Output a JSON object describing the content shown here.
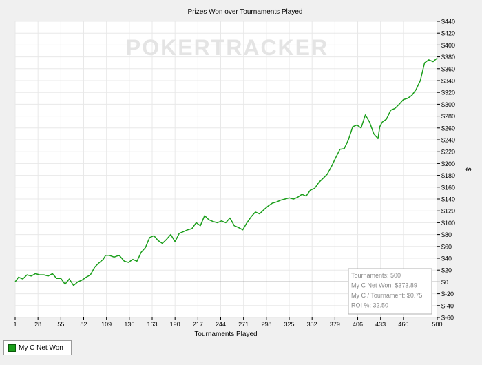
{
  "chart_data": {
    "type": "line",
    "title": "Prizes Won over Tournaments Played",
    "xlabel": "Tournaments Played",
    "ylabel": "$",
    "watermark": "POKERTRACKER",
    "xlim": [
      1,
      500
    ],
    "ylim": [
      -60,
      440
    ],
    "x_ticks": [
      "1",
      "28",
      "55",
      "82",
      "109",
      "136",
      "163",
      "190",
      "217",
      "244",
      "271",
      "298",
      "325",
      "352",
      "379",
      "406",
      "433",
      "460",
      "500"
    ],
    "y_ticks": [
      "$440",
      "$420",
      "$400",
      "$380",
      "$360",
      "$340",
      "$320",
      "$300",
      "$280",
      "$260",
      "$240",
      "$220",
      "$200",
      "$180",
      "$160",
      "$140",
      "$120",
      "$100",
      "$80",
      "$60",
      "$40",
      "$20",
      "$0",
      "$-20",
      "$-40",
      "$-60"
    ],
    "grid": true,
    "legend_position": "bottom-left",
    "series": [
      {
        "name": "My C Net Won",
        "color": "#1a9e1a",
        "x": [
          1,
          5,
          10,
          15,
          20,
          25,
          30,
          35,
          40,
          45,
          50,
          55,
          60,
          65,
          70,
          75,
          80,
          85,
          90,
          95,
          100,
          105,
          108,
          112,
          118,
          124,
          130,
          135,
          140,
          145,
          150,
          155,
          160,
          165,
          170,
          175,
          180,
          185,
          190,
          195,
          200,
          205,
          210,
          215,
          220,
          225,
          230,
          235,
          240,
          245,
          250,
          255,
          260,
          265,
          270,
          275,
          280,
          285,
          290,
          295,
          300,
          305,
          310,
          315,
          320,
          325,
          330,
          335,
          340,
          345,
          350,
          355,
          360,
          365,
          370,
          375,
          380,
          385,
          390,
          395,
          400,
          405,
          410,
          415,
          420,
          425,
          430,
          432,
          435,
          440,
          445,
          450,
          455,
          460,
          465,
          470,
          475,
          480,
          485,
          490,
          495,
          500
        ],
        "y": [
          0,
          8,
          5,
          12,
          10,
          14,
          12,
          12,
          10,
          14,
          6,
          6,
          -4,
          5,
          -6,
          0,
          3,
          8,
          12,
          25,
          32,
          38,
          45,
          45,
          42,
          45,
          35,
          33,
          38,
          35,
          50,
          58,
          75,
          78,
          70,
          65,
          72,
          80,
          68,
          82,
          85,
          88,
          90,
          100,
          95,
          112,
          105,
          102,
          100,
          103,
          100,
          108,
          95,
          92,
          88,
          100,
          110,
          118,
          115,
          122,
          128,
          133,
          135,
          138,
          140,
          142,
          140,
          143,
          148,
          145,
          155,
          158,
          168,
          175,
          182,
          195,
          210,
          224,
          225,
          240,
          262,
          265,
          260,
          282,
          270,
          250,
          242,
          262,
          270,
          275,
          290,
          293,
          300,
          308,
          310,
          315,
          325,
          340,
          370,
          375,
          372,
          378
        ]
      }
    ],
    "stats": [
      "Tournaments: 500",
      "My C Net Won: $373.89",
      "My C / Tournament: $0.75",
      "ROI %: 32.50"
    ]
  }
}
